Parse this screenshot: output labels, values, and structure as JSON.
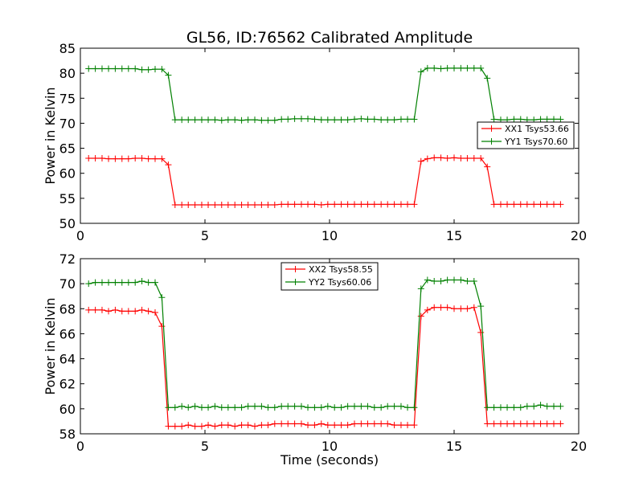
{
  "figure": {
    "title": "GL56, ID:76562 Calibrated Amplitude",
    "xlabel": "Time (seconds)"
  },
  "colors": {
    "red": "#ff0000",
    "green": "#008000"
  },
  "chart_data": [
    {
      "type": "line",
      "title": "GL56, ID:76562 Calibrated Amplitude",
      "xlabel": "",
      "ylabel": "Power in Kelvin",
      "xlim": [
        0,
        20
      ],
      "ylim": [
        50,
        85
      ],
      "xticks": [
        0,
        5,
        10,
        15,
        20
      ],
      "yticks": [
        50,
        55,
        60,
        65,
        70,
        75,
        80,
        85
      ],
      "grid": false,
      "legend": "right",
      "x": [
        0.33,
        0.6,
        0.87,
        1.13,
        1.4,
        1.67,
        1.93,
        2.2,
        2.47,
        2.73,
        3.0,
        3.27,
        3.53,
        3.8,
        4.07,
        4.33,
        4.6,
        4.87,
        5.13,
        5.4,
        5.67,
        5.93,
        6.2,
        6.47,
        6.73,
        7.0,
        7.27,
        7.53,
        7.8,
        8.07,
        8.33,
        8.6,
        8.87,
        9.13,
        9.4,
        9.67,
        9.93,
        10.2,
        10.47,
        10.73,
        11.0,
        11.27,
        11.53,
        11.8,
        12.07,
        12.33,
        12.6,
        12.87,
        13.13,
        13.4,
        13.67,
        13.93,
        14.2,
        14.47,
        14.73,
        15.0,
        15.27,
        15.53,
        15.8,
        16.07,
        16.33,
        16.6,
        16.87,
        17.13,
        17.4,
        17.67,
        17.93,
        18.2,
        18.47,
        18.73,
        19.0,
        19.27
      ],
      "series": [
        {
          "name": "XX1 Tsys53.66",
          "color": "#ff0000",
          "values": [
            63.0,
            63.0,
            63.0,
            62.9,
            62.9,
            62.9,
            62.9,
            63.0,
            63.0,
            62.9,
            62.9,
            62.9,
            61.7,
            53.7,
            53.7,
            53.7,
            53.7,
            53.7,
            53.7,
            53.7,
            53.7,
            53.7,
            53.7,
            53.7,
            53.7,
            53.7,
            53.7,
            53.7,
            53.7,
            53.8,
            53.8,
            53.8,
            53.8,
            53.8,
            53.8,
            53.7,
            53.8,
            53.8,
            53.8,
            53.8,
            53.8,
            53.8,
            53.8,
            53.8,
            53.8,
            53.8,
            53.8,
            53.8,
            53.8,
            53.8,
            62.4,
            62.9,
            63.1,
            63.1,
            63.0,
            63.1,
            63.0,
            63.0,
            63.0,
            63.0,
            61.3,
            53.8,
            53.8,
            53.8,
            53.8,
            53.8,
            53.8,
            53.8,
            53.8,
            53.8,
            53.8,
            53.8
          ]
        },
        {
          "name": "YY1 Tsys70.60",
          "color": "#008000",
          "values": [
            80.9,
            80.9,
            80.9,
            80.9,
            80.9,
            80.9,
            80.9,
            80.9,
            80.7,
            80.7,
            80.8,
            80.8,
            79.6,
            70.7,
            70.7,
            70.7,
            70.7,
            70.7,
            70.7,
            70.7,
            70.6,
            70.7,
            70.7,
            70.6,
            70.7,
            70.7,
            70.6,
            70.6,
            70.6,
            70.8,
            70.8,
            70.9,
            70.9,
            70.9,
            70.8,
            70.7,
            70.7,
            70.7,
            70.7,
            70.7,
            70.8,
            70.9,
            70.8,
            70.8,
            70.7,
            70.7,
            70.7,
            70.8,
            70.8,
            70.8,
            80.3,
            81.0,
            81.0,
            80.9,
            81.0,
            81.0,
            81.0,
            81.0,
            81.0,
            81.0,
            79.0,
            70.8,
            70.7,
            70.7,
            70.8,
            70.8,
            70.7,
            70.7,
            70.8,
            70.8,
            70.8,
            70.8
          ]
        }
      ]
    },
    {
      "type": "line",
      "title": "",
      "xlabel": "Time (seconds)",
      "ylabel": "Power in Kelvin",
      "xlim": [
        0,
        20
      ],
      "ylim": [
        58,
        72
      ],
      "xticks": [
        0,
        5,
        10,
        15,
        20
      ],
      "yticks": [
        58,
        60,
        62,
        64,
        66,
        68,
        70,
        72
      ],
      "grid": false,
      "legend": "top-center",
      "x": [
        0.33,
        0.6,
        0.87,
        1.13,
        1.4,
        1.67,
        1.93,
        2.2,
        2.47,
        2.73,
        3.0,
        3.27,
        3.53,
        3.8,
        4.07,
        4.33,
        4.6,
        4.87,
        5.13,
        5.4,
        5.67,
        5.93,
        6.2,
        6.47,
        6.73,
        7.0,
        7.27,
        7.53,
        7.8,
        8.07,
        8.33,
        8.6,
        8.87,
        9.13,
        9.4,
        9.67,
        9.93,
        10.2,
        10.47,
        10.73,
        11.0,
        11.27,
        11.53,
        11.8,
        12.07,
        12.33,
        12.6,
        12.87,
        13.13,
        13.4,
        13.67,
        13.93,
        14.2,
        14.47,
        14.73,
        15.0,
        15.27,
        15.53,
        15.8,
        16.07,
        16.33,
        16.6,
        16.87,
        17.13,
        17.4,
        17.67,
        17.93,
        18.2,
        18.47,
        18.73,
        19.0,
        19.27
      ],
      "series": [
        {
          "name": "XX2 Tsys58.55",
          "color": "#ff0000",
          "values": [
            67.9,
            67.9,
            67.9,
            67.8,
            67.9,
            67.8,
            67.8,
            67.8,
            67.9,
            67.8,
            67.7,
            66.6,
            58.6,
            58.6,
            58.6,
            58.7,
            58.6,
            58.6,
            58.7,
            58.6,
            58.7,
            58.7,
            58.6,
            58.7,
            58.7,
            58.6,
            58.7,
            58.7,
            58.8,
            58.8,
            58.8,
            58.8,
            58.8,
            58.7,
            58.7,
            58.8,
            58.7,
            58.7,
            58.7,
            58.7,
            58.8,
            58.8,
            58.8,
            58.8,
            58.8,
            58.8,
            58.7,
            58.7,
            58.7,
            58.7,
            67.4,
            67.9,
            68.1,
            68.1,
            68.1,
            68.0,
            68.0,
            68.0,
            68.1,
            66.1,
            58.8,
            58.8,
            58.8,
            58.8,
            58.8,
            58.8,
            58.8,
            58.8,
            58.8,
            58.8,
            58.8,
            58.8
          ]
        },
        {
          "name": "YY2 Tsys60.06",
          "color": "#008000",
          "values": [
            70.0,
            70.1,
            70.1,
            70.1,
            70.1,
            70.1,
            70.1,
            70.1,
            70.2,
            70.1,
            70.1,
            68.9,
            60.1,
            60.1,
            60.2,
            60.1,
            60.2,
            60.1,
            60.1,
            60.2,
            60.1,
            60.1,
            60.1,
            60.1,
            60.2,
            60.2,
            60.2,
            60.1,
            60.1,
            60.2,
            60.2,
            60.2,
            60.2,
            60.1,
            60.1,
            60.1,
            60.2,
            60.1,
            60.1,
            60.2,
            60.2,
            60.2,
            60.2,
            60.1,
            60.1,
            60.2,
            60.2,
            60.2,
            60.1,
            60.1,
            69.6,
            70.3,
            70.2,
            70.2,
            70.3,
            70.3,
            70.3,
            70.2,
            70.2,
            68.2,
            60.1,
            60.1,
            60.1,
            60.1,
            60.1,
            60.1,
            60.2,
            60.2,
            60.3,
            60.2,
            60.2,
            60.2
          ]
        }
      ]
    }
  ]
}
